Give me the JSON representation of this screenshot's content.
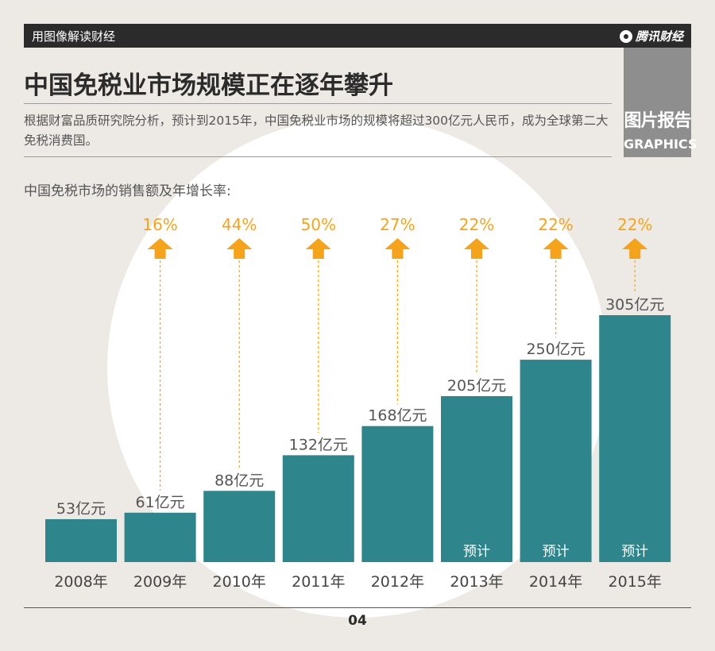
{
  "header": {
    "section_label": "用图像解读财经",
    "brand": "腾讯财经"
  },
  "badge": {
    "cn": "图片报告",
    "en": "GRAPHICS"
  },
  "title": "中国免税业市场规模正在逐年攀升",
  "description": "根据财富品质研究院分析，预计到2015年，中国免税业市场的规模将超过300亿元人民币，成为全球第二大免税消费国。",
  "chart_title": "中国免税市场的销售额及年增长率:",
  "colors": {
    "bar": "#2e868c",
    "arrow": "#f5a31a",
    "growth_text": "#f5a31a",
    "value_text": "#555555"
  },
  "chart_data": {
    "type": "bar",
    "title": "中国免税市场的销售额及年增长率:",
    "categories": [
      "2008年",
      "2009年",
      "2010年",
      "2011年",
      "2012年",
      "2013年",
      "2014年",
      "2015年"
    ],
    "values": [
      53,
      61,
      88,
      132,
      168,
      205,
      250,
      305
    ],
    "value_labels": [
      "53亿元",
      "61亿元",
      "88亿元",
      "132亿元",
      "168亿元",
      "205亿元",
      "250亿元",
      "305亿元"
    ],
    "unit": "亿元",
    "growth_rates": [
      null,
      "16%",
      "44%",
      "50%",
      "27%",
      "22%",
      "22%",
      "22%"
    ],
    "forecast_label": "预计",
    "forecast": [
      false,
      false,
      false,
      false,
      false,
      true,
      true,
      true
    ],
    "ylim": [
      0,
      305
    ],
    "grid": false,
    "legend": "none"
  },
  "page_number": "04"
}
